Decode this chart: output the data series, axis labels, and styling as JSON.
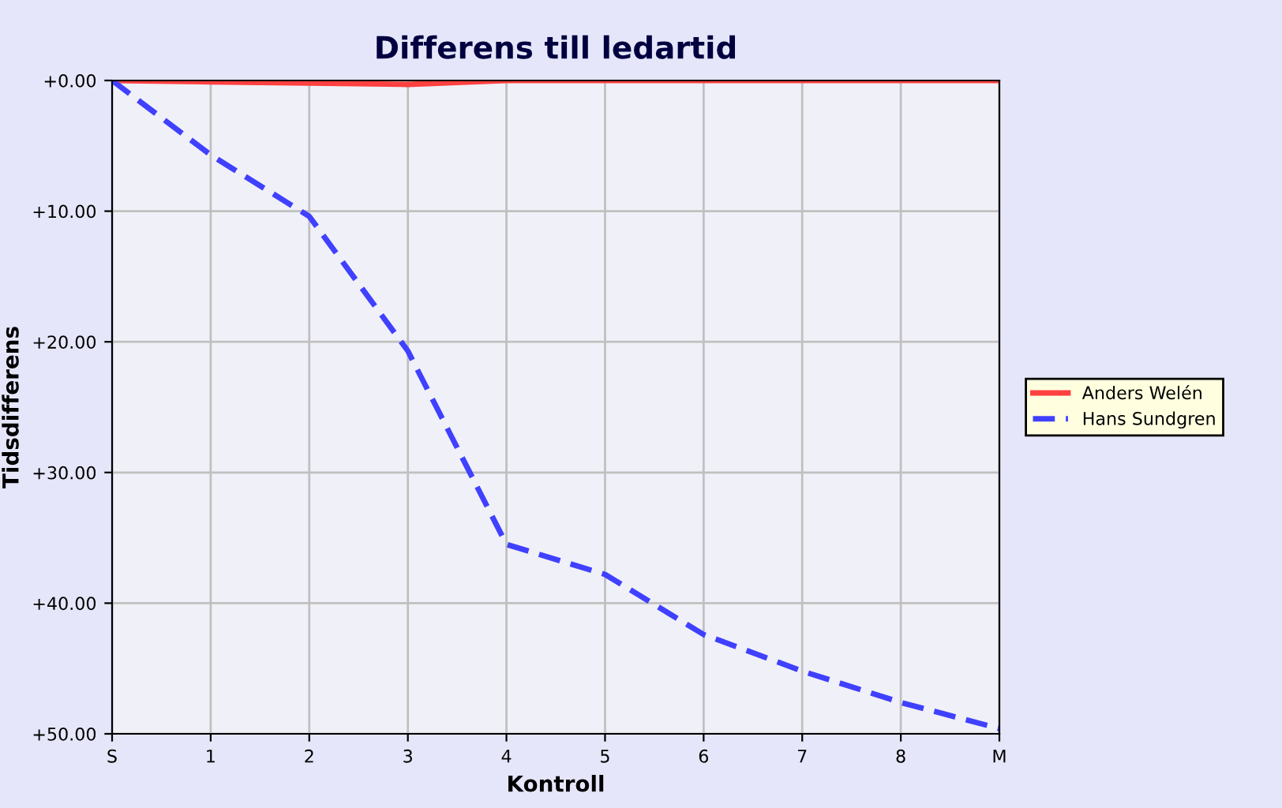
{
  "chart_data": {
    "type": "line",
    "title": "Differens till ledartid",
    "xlabel": "Kontroll",
    "ylabel": "Tidsdifferens",
    "categories": [
      "S",
      "1",
      "2",
      "3",
      "4",
      "5",
      "6",
      "7",
      "8",
      "M"
    ],
    "ylim": [
      50,
      0
    ],
    "yticks": [
      {
        "value": 0,
        "label": "+0.00"
      },
      {
        "value": 10,
        "label": "+10.00"
      },
      {
        "value": 20,
        "label": "+20.00"
      },
      {
        "value": 30,
        "label": "+30.00"
      },
      {
        "value": 40,
        "label": "+40.00"
      },
      {
        "value": 50,
        "label": "+50.00"
      }
    ],
    "grid": true,
    "legend": "right",
    "series": [
      {
        "name": "Anders Welén",
        "color": "#ff4040",
        "line_style": "solid",
        "values": [
          0,
          0.1,
          0.2,
          0.3,
          0,
          0,
          0,
          0,
          0,
          0
        ]
      },
      {
        "name": "Hans Sundgren",
        "color": "#4040ff",
        "line_style": "dashed",
        "values": [
          0,
          5.7,
          10.4,
          20.7,
          35.5,
          37.8,
          42.4,
          45.2,
          47.6,
          49.6
        ]
      }
    ]
  }
}
